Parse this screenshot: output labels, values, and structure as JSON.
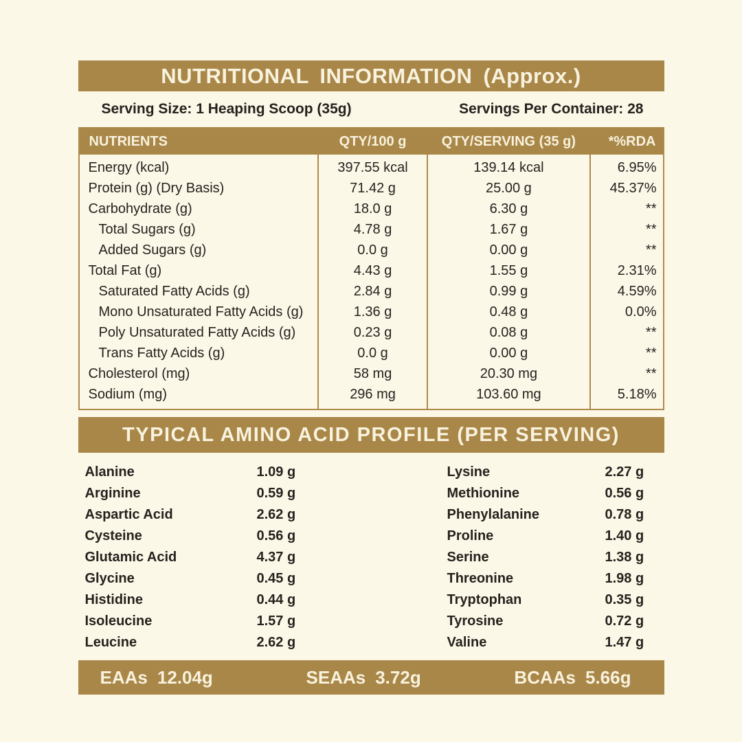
{
  "colors": {
    "gold": "#A98748",
    "cream": "#FCF8E8",
    "dark_text": "#26211D",
    "light_text": "#F8F2DE"
  },
  "header": {
    "title": "NUTRITIONAL INFORMATION (Approx.)"
  },
  "serving": {
    "size": "Serving Size: 1 Heaping Scoop (35g)",
    "container": "Servings Per Container: 28"
  },
  "table": {
    "headers": [
      "NUTRIENTS",
      "QTY/100 g",
      "QTY/SERVING (35 g)",
      "*%RDA"
    ],
    "rows": [
      {
        "name": "Energy (kcal)",
        "qty100": "397.55 kcal",
        "qtyServing": "139.14 kcal",
        "rda": "6.95%",
        "indent": false
      },
      {
        "name": "Protein (g) (Dry Basis)",
        "qty100": "71.42 g",
        "qtyServing": "25.00 g",
        "rda": "45.37%",
        "indent": false
      },
      {
        "name": "Carbohydrate (g)",
        "qty100": "18.0 g",
        "qtyServing": "6.30 g",
        "rda": "**",
        "indent": false
      },
      {
        "name": "Total Sugars (g)",
        "qty100": "4.78 g",
        "qtyServing": "1.67 g",
        "rda": "**",
        "indent": true
      },
      {
        "name": "Added Sugars (g)",
        "qty100": "0.0 g",
        "qtyServing": "0.00 g",
        "rda": "**",
        "indent": true
      },
      {
        "name": "Total Fat (g)",
        "qty100": "4.43 g",
        "qtyServing": "1.55 g",
        "rda": "2.31%",
        "indent": false
      },
      {
        "name": "Saturated Fatty Acids (g)",
        "qty100": "2.84 g",
        "qtyServing": "0.99 g",
        "rda": "4.59%",
        "indent": true
      },
      {
        "name": "Mono Unsaturated Fatty Acids (g)",
        "qty100": "1.36 g",
        "qtyServing": "0.48 g",
        "rda": "0.0%",
        "indent": true
      },
      {
        "name": "Poly Unsaturated Fatty Acids (g)",
        "qty100": "0.23 g",
        "qtyServing": "0.08 g",
        "rda": "**",
        "indent": true
      },
      {
        "name": "Trans Fatty Acids (g)",
        "qty100": "0.0 g",
        "qtyServing": "0.00 g",
        "rda": "**",
        "indent": true
      },
      {
        "name": "Cholesterol (mg)",
        "qty100": "58 mg",
        "qtyServing": "20.30 mg",
        "rda": "**",
        "indent": false
      },
      {
        "name": "Sodium (mg)",
        "qty100": "296 mg",
        "qtyServing": "103.60 mg",
        "rda": "5.18%",
        "indent": false
      }
    ]
  },
  "amino": {
    "title": "TYPICAL AMINO ACID PROFILE (PER SERVING)",
    "left": [
      {
        "name": "Alanine",
        "value": "1.09 g"
      },
      {
        "name": "Arginine",
        "value": "0.59 g"
      },
      {
        "name": "Aspartic Acid",
        "value": "2.62 g"
      },
      {
        "name": "Cysteine",
        "value": "0.56 g"
      },
      {
        "name": "Glutamic Acid",
        "value": "4.37 g"
      },
      {
        "name": "Glycine",
        "value": "0.45 g"
      },
      {
        "name": "Histidine",
        "value": "0.44 g"
      },
      {
        "name": "Isoleucine",
        "value": "1.57 g"
      },
      {
        "name": "Leucine",
        "value": "2.62 g"
      }
    ],
    "right": [
      {
        "name": "Lysine",
        "value": "2.27 g"
      },
      {
        "name": "Methionine",
        "value": "0.56 g"
      },
      {
        "name": "Phenylalanine",
        "value": "0.78 g"
      },
      {
        "name": "Proline",
        "value": "1.40 g"
      },
      {
        "name": "Serine",
        "value": "1.38 g"
      },
      {
        "name": "Threonine",
        "value": "1.98 g"
      },
      {
        "name": "Tryptophan",
        "value": "0.35 g"
      },
      {
        "name": "Tyrosine",
        "value": "0.72 g"
      },
      {
        "name": "Valine",
        "value": "1.47 g"
      }
    ]
  },
  "summary": [
    {
      "label": "EAAs",
      "value": "12.04g"
    },
    {
      "label": "SEAAs",
      "value": "3.72g"
    },
    {
      "label": "BCAAs",
      "value": "5.66g"
    }
  ]
}
